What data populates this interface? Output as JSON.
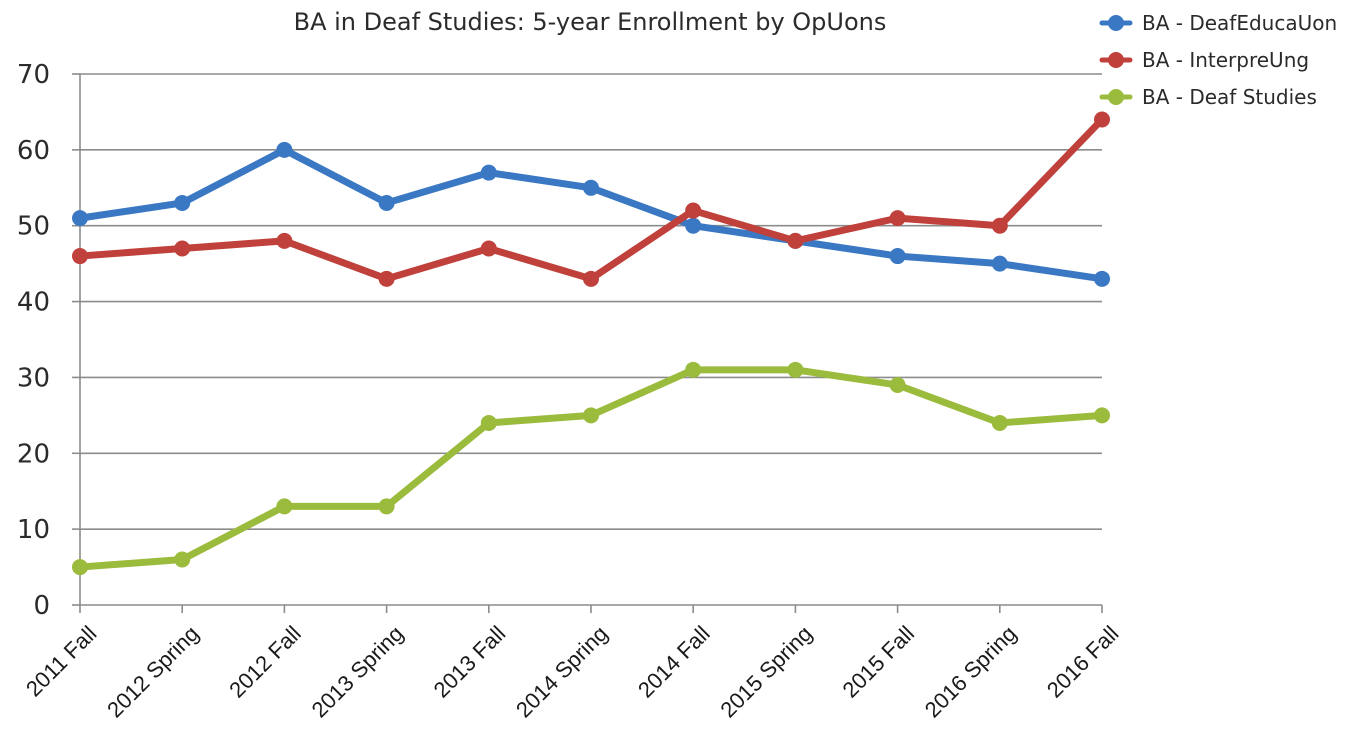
{
  "chart_data": {
    "type": "line",
    "title": "BA in Deaf Studies: 5-year Enrollment by OpUons",
    "xlabel": "",
    "ylabel": "",
    "categories": [
      "2011 Fall",
      "2012 Spring",
      "2012 Fall",
      "2013 Spring",
      "2013 Fall",
      "2014 Spring",
      "2014 Fall",
      "2015 Spring",
      "2015 Fall",
      "2016 Spring",
      "2016 Fall"
    ],
    "ylim": [
      0,
      70
    ],
    "yticks": [
      "0",
      "10",
      "20",
      "30",
      "40",
      "50",
      "60",
      "70"
    ],
    "grid": true,
    "legend_position": "top-right",
    "series": [
      {
        "name": "BA - DeafEducaUon",
        "color": "#3a78c3",
        "values": [
          51,
          53,
          60,
          53,
          57,
          55,
          50,
          48,
          46,
          45,
          43
        ]
      },
      {
        "name": "BA - InterpreUng",
        "color": "#c0403b",
        "values": [
          46,
          47,
          48,
          43,
          47,
          43,
          52,
          48,
          51,
          50,
          64
        ]
      },
      {
        "name": "BA - Deaf Studies",
        "color": "#9bbb3c",
        "values": [
          5,
          6,
          13,
          13,
          24,
          25,
          31,
          31,
          29,
          24,
          25
        ]
      }
    ]
  }
}
